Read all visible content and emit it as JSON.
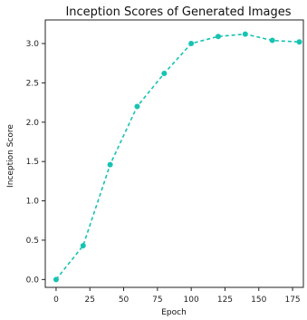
{
  "chart_data": {
    "type": "line",
    "title": "Inception Scores of Generated Images",
    "xlabel": "Epoch",
    "ylabel": "Inception Score",
    "xlim": [
      -8,
      183
    ],
    "ylim": [
      -0.1,
      3.3
    ],
    "xticks": [
      0,
      25,
      50,
      75,
      100,
      125,
      150,
      175
    ],
    "yticks": [
      0.0,
      0.5,
      1.0,
      1.5,
      2.0,
      2.5,
      3.0
    ],
    "ytick_labels": [
      "0.0",
      "0.5",
      "1.0",
      "1.5",
      "2.0",
      "2.5",
      "3.0"
    ],
    "grid": false,
    "series": [
      {
        "color": "#17c3b2",
        "line_style": "dashed",
        "marker": "circle",
        "x": [
          0,
          20,
          40,
          60,
          80,
          100,
          120,
          140,
          160,
          180
        ],
        "y": [
          0.0,
          0.43,
          1.46,
          2.2,
          2.62,
          3.0,
          3.09,
          3.12,
          3.04,
          3.02
        ]
      }
    ]
  }
}
